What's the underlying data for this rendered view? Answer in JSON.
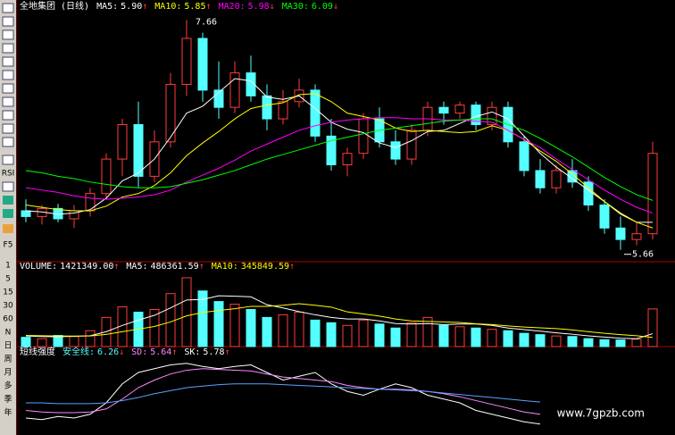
{
  "chart_data": [
    {
      "type": "candlestick",
      "title": "全地集团 (日线)",
      "header": [
        {
          "label": "MA5:",
          "value": "5.90",
          "arrow": "↑",
          "color": "#ffffff"
        },
        {
          "label": "MA10:",
          "value": "5.85",
          "arrow": "↑",
          "color": "#ffff00"
        },
        {
          "label": "MA20:",
          "value": "5.98",
          "arrow": "↓",
          "color": "#ff00ff"
        },
        {
          "label": "MA30:",
          "value": "6.09",
          "arrow": "↓",
          "color": "#00ff00"
        }
      ],
      "up_color": "#ff3c3c",
      "down_color": "#54ffff",
      "open": [
        6.0,
        5.95,
        6.02,
        5.93,
        6.0,
        6.15,
        6.45,
        6.75,
        6.3,
        6.6,
        7.1,
        7.5,
        7.05,
        6.9,
        7.2,
        7.0,
        6.8,
        6.95,
        7.05,
        6.65,
        6.4,
        6.5,
        6.8,
        6.6,
        6.45,
        6.7,
        6.9,
        6.85,
        6.92,
        6.75,
        6.9,
        6.6,
        6.35,
        6.2,
        6.35,
        6.25,
        6.05,
        5.85,
        5.75,
        5.8
      ],
      "high": [
        6.1,
        6.05,
        6.06,
        6.05,
        6.2,
        6.5,
        6.8,
        6.95,
        6.7,
        7.2,
        7.66,
        7.55,
        7.3,
        7.3,
        7.35,
        7.1,
        7.05,
        7.15,
        7.1,
        6.8,
        6.55,
        6.85,
        6.9,
        6.7,
        6.75,
        6.95,
        6.95,
        6.95,
        6.95,
        6.95,
        6.95,
        6.65,
        6.45,
        6.4,
        6.45,
        6.3,
        6.1,
        5.95,
        5.9,
        6.6
      ],
      "low": [
        5.9,
        5.88,
        5.9,
        5.85,
        5.95,
        6.1,
        6.3,
        6.2,
        6.25,
        6.55,
        7.0,
        6.95,
        6.8,
        6.85,
        6.95,
        6.7,
        6.75,
        6.9,
        6.6,
        6.35,
        6.3,
        6.45,
        6.55,
        6.4,
        6.4,
        6.65,
        6.75,
        6.8,
        6.7,
        6.7,
        6.55,
        6.3,
        6.15,
        6.15,
        6.2,
        6.0,
        5.8,
        5.66,
        5.7,
        5.75
      ],
      "close": [
        5.95,
        6.02,
        5.93,
        6.0,
        6.15,
        6.45,
        6.75,
        6.3,
        6.6,
        7.1,
        7.5,
        7.05,
        6.9,
        7.2,
        7.0,
        6.8,
        6.95,
        7.05,
        6.65,
        6.4,
        6.5,
        6.8,
        6.6,
        6.45,
        6.7,
        6.9,
        6.85,
        6.92,
        6.75,
        6.9,
        6.6,
        6.35,
        6.2,
        6.35,
        6.25,
        6.05,
        5.85,
        5.75,
        5.8,
        6.5
      ],
      "high_mark": 10,
      "low_mark": 37,
      "series": [
        {
          "name": "MA5",
          "color": "#ffffff",
          "values": [
            6.0,
            5.99,
            5.97,
            5.98,
            6.01,
            6.11,
            6.26,
            6.33,
            6.45,
            6.64,
            6.85,
            6.91,
            7.03,
            7.15,
            7.13,
            6.99,
            6.97,
            7.0,
            6.89,
            6.77,
            6.71,
            6.68,
            6.59,
            6.55,
            6.61,
            6.69,
            6.7,
            6.76,
            6.82,
            6.86,
            6.8,
            6.65,
            6.5,
            6.38,
            6.28,
            6.18,
            6.08,
            5.98,
            5.9,
            5.9
          ]
        },
        {
          "name": "MA10",
          "color": "#ffff00",
          "values": [
            6.05,
            6.03,
            6.01,
            6.0,
            6.0,
            6.04,
            6.12,
            6.15,
            6.22,
            6.33,
            6.48,
            6.59,
            6.69,
            6.8,
            6.89,
            6.92,
            6.94,
            7.01,
            7.02,
            6.95,
            6.85,
            6.82,
            6.79,
            6.72,
            6.69,
            6.7,
            6.69,
            6.68,
            6.69,
            6.74,
            6.7,
            6.62,
            6.52,
            6.43,
            6.32,
            6.2,
            6.08,
            5.97,
            5.9,
            5.85
          ]
        },
        {
          "name": "MA20",
          "color": "#ff00ff",
          "values": [
            6.2,
            6.18,
            6.16,
            6.13,
            6.11,
            6.1,
            6.11,
            6.12,
            6.14,
            6.18,
            6.25,
            6.31,
            6.37,
            6.44,
            6.52,
            6.58,
            6.64,
            6.7,
            6.74,
            6.77,
            6.79,
            6.8,
            6.81,
            6.81,
            6.8,
            6.8,
            6.79,
            6.79,
            6.78,
            6.77,
            6.7,
            6.62,
            6.55,
            6.45,
            6.36,
            6.27,
            6.18,
            6.1,
            6.03,
            5.98
          ]
        },
        {
          "name": "MA30",
          "color": "#00ff00",
          "values": [
            6.35,
            6.33,
            6.3,
            6.28,
            6.25,
            6.23,
            6.21,
            6.2,
            6.2,
            6.21,
            6.24,
            6.27,
            6.31,
            6.35,
            6.4,
            6.45,
            6.49,
            6.53,
            6.57,
            6.61,
            6.64,
            6.67,
            6.7,
            6.72,
            6.74,
            6.76,
            6.78,
            6.79,
            6.8,
            6.8,
            6.75,
            6.7,
            6.63,
            6.55,
            6.47,
            6.38,
            6.29,
            6.21,
            6.14,
            6.09
          ]
        }
      ],
      "ylim": [
        5.58,
        7.71
      ]
    },
    {
      "type": "bar",
      "header": [
        {
          "label": "VOLUME:",
          "value": "1421349.00",
          "arrow": "↑",
          "color": "#ffffff"
        },
        {
          "label": "MA5:",
          "value": "486361.59",
          "arrow": "↑",
          "color": "#ffffff"
        },
        {
          "label": "MA10:",
          "value": "345849.59",
          "arrow": "↑",
          "color": "#ffff00"
        }
      ],
      "values": [
        350000,
        300000,
        420000,
        380000,
        600000,
        1100000,
        1500000,
        1300000,
        1400000,
        2000000,
        2600000,
        2100000,
        1700000,
        1600000,
        1400000,
        1100000,
        1200000,
        1300000,
        1000000,
        900000,
        800000,
        1000000,
        850000,
        700000,
        900000,
        1100000,
        800000,
        750000,
        700000,
        650000,
        600000,
        500000,
        450000,
        400000,
        380000,
        300000,
        260000,
        250000,
        280000,
        1421349
      ],
      "series": [
        {
          "name": "MA5",
          "color": "#ffffff",
          "values": [
            400000,
            380000,
            370000,
            390000,
            410000,
            560000,
            800000,
            1000000,
            1180000,
            1460000,
            1760000,
            1780000,
            1920000,
            1900000,
            1880000,
            1580000,
            1460000,
            1320000,
            1200000,
            1100000,
            1040000,
            1040000,
            970000,
            870000,
            850000,
            870000,
            830000,
            850000,
            850000,
            800000,
            700000,
            640000,
            580000,
            520000,
            466000,
            406000,
            358000,
            318000,
            294000,
            486361.59
          ]
        },
        {
          "name": "MA10",
          "color": "#ffff00",
          "values": [
            420000,
            410000,
            400000,
            395000,
            400000,
            460000,
            560000,
            660000,
            760000,
            930000,
            1160000,
            1290000,
            1360000,
            1430000,
            1520000,
            1520000,
            1560000,
            1620000,
            1560000,
            1490000,
            1310000,
            1230000,
            1150000,
            1040000,
            970000,
            950000,
            930000,
            910000,
            860000,
            830000,
            780000,
            740000,
            710000,
            680000,
            630000,
            560000,
            500000,
            450000,
            410000,
            345849.59
          ]
        }
      ],
      "ylim": [
        0,
        2800000
      ]
    },
    {
      "type": "line",
      "title": "短线强度",
      "header": [
        {
          "label": "安全线:",
          "value": "6.26",
          "arrow": "↓",
          "color": "#54ffff"
        },
        {
          "label": "SD:",
          "value": "5.64",
          "arrow": "↑",
          "color": "#ff88ff"
        },
        {
          "label": "SK:",
          "value": "5.78",
          "arrow": "↑",
          "color": "#ffffff"
        }
      ],
      "series": [
        {
          "name": "SK",
          "color": "#ffffff",
          "values": [
            2.0,
            1.8,
            2.2,
            2.0,
            2.5,
            4.0,
            6.5,
            8.0,
            8.5,
            9.0,
            9.2,
            8.8,
            8.5,
            8.8,
            9.0,
            8.0,
            7.0,
            7.5,
            8.0,
            6.5,
            5.5,
            5.0,
            5.8,
            6.5,
            6.0,
            5.0,
            4.5,
            4.0,
            3.0,
            2.5,
            2.0,
            1.5,
            1.2,
            null,
            null,
            null,
            null,
            null,
            null,
            null
          ]
        },
        {
          "name": "SD",
          "color": "#ff88ff",
          "values": [
            3.0,
            2.8,
            2.7,
            2.7,
            2.8,
            3.2,
            4.5,
            6.0,
            7.0,
            7.8,
            8.3,
            8.5,
            8.4,
            8.3,
            8.2,
            7.8,
            7.4,
            7.2,
            7.0,
            6.8,
            6.3,
            6.0,
            5.8,
            5.8,
            5.7,
            5.5,
            5.2,
            4.8,
            4.3,
            3.8,
            3.3,
            2.8,
            2.5,
            null,
            null,
            null,
            null,
            null,
            null,
            null
          ]
        },
        {
          "name": "安全线",
          "color": "#5aa0ff",
          "values": [
            4.0,
            4.0,
            3.9,
            3.9,
            3.9,
            4.0,
            4.3,
            4.7,
            5.2,
            5.6,
            6.0,
            6.2,
            6.4,
            6.5,
            6.5,
            6.5,
            6.4,
            6.3,
            6.2,
            6.1,
            6.0,
            5.9,
            5.8,
            5.7,
            5.6,
            5.5,
            5.3,
            5.1,
            4.9,
            4.7,
            4.5,
            4.3,
            4.1,
            null,
            null,
            null,
            null,
            null,
            null,
            null
          ]
        }
      ],
      "ylim": [
        0,
        10
      ]
    }
  ],
  "toolbar": {
    "icon_labels": [
      "RSI",
      "F5"
    ],
    "periods": [
      "1",
      "5",
      "15",
      "30",
      "60",
      "N",
      "日",
      "周",
      "月",
      "多",
      "季",
      "年"
    ]
  },
  "watermark": "www.7gpzb.com"
}
